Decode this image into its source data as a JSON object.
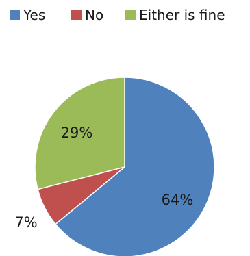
{
  "chart_data": {
    "type": "pie",
    "title": "",
    "legend_position": "top",
    "slices": [
      {
        "label": "Yes",
        "value": 64,
        "display": "64%",
        "color": "#4f81bd"
      },
      {
        "label": "No",
        "value": 7,
        "display": "7%",
        "color": "#c0504d"
      },
      {
        "label": "Either is fine",
        "value": 29,
        "display": "29%",
        "color": "#9bbb59"
      }
    ]
  }
}
